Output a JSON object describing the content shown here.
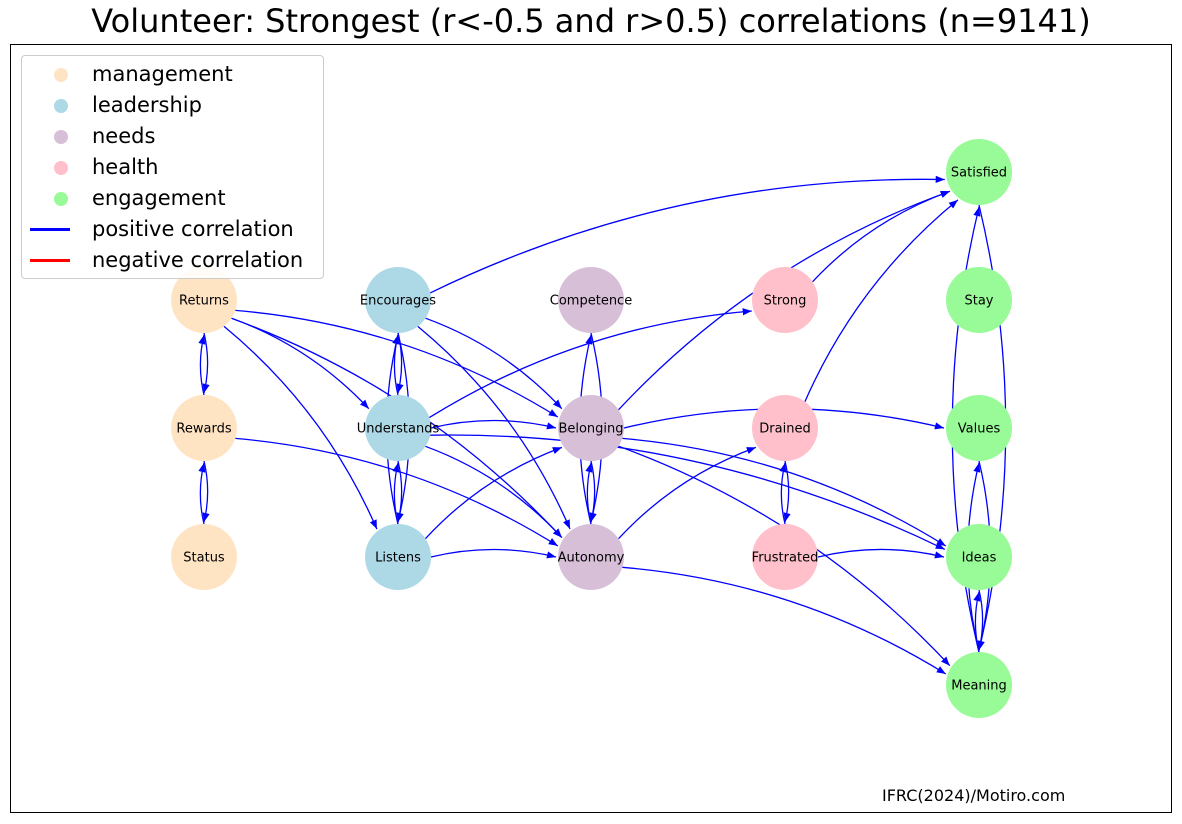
{
  "title": "Volunteer: Strongest (r<-0.5 and r>0.5) correlations (n=9141)",
  "credit": "IFRC(2024)/Motiro.com",
  "legend": {
    "items": [
      {
        "key": "management",
        "label": "management",
        "kind": "marker",
        "color": "#ffe4c4"
      },
      {
        "key": "leadership",
        "label": "leadership",
        "kind": "marker",
        "color": "#add8e6"
      },
      {
        "key": "needs",
        "label": "needs",
        "kind": "marker",
        "color": "#d8bfd8"
      },
      {
        "key": "health",
        "label": "health",
        "kind": "marker",
        "color": "#ffc0cb"
      },
      {
        "key": "engagement",
        "label": "engagement",
        "kind": "marker",
        "color": "#98fb98"
      },
      {
        "key": "positive",
        "label": "positive correlation",
        "kind": "line",
        "color": "#0000ff"
      },
      {
        "key": "negative",
        "label": "negative correlation",
        "kind": "line",
        "color": "#ff0000"
      }
    ]
  },
  "group_colors": {
    "management": "#ffe4c4",
    "leadership": "#add8e6",
    "needs": "#d8bfd8",
    "health": "#ffc0cb",
    "engagement": "#98fb98"
  },
  "edge_colors": {
    "positive": "#0000ff",
    "negative": "#ff0000"
  },
  "nodes": [
    {
      "id": "Returns",
      "label": "Returns",
      "group": "management"
    },
    {
      "id": "Rewards",
      "label": "Rewards",
      "group": "management"
    },
    {
      "id": "Status",
      "label": "Status",
      "group": "management"
    },
    {
      "id": "Encourages",
      "label": "Encourages",
      "group": "leadership"
    },
    {
      "id": "Understands",
      "label": "Understands",
      "group": "leadership"
    },
    {
      "id": "Listens",
      "label": "Listens",
      "group": "leadership"
    },
    {
      "id": "Competence",
      "label": "Competence",
      "group": "needs"
    },
    {
      "id": "Belonging",
      "label": "Belonging",
      "group": "needs"
    },
    {
      "id": "Autonomy",
      "label": "Autonomy",
      "group": "needs"
    },
    {
      "id": "Strong",
      "label": "Strong",
      "group": "health"
    },
    {
      "id": "Drained",
      "label": "Drained",
      "group": "health"
    },
    {
      "id": "Frustrated",
      "label": "Frustrated",
      "group": "health"
    },
    {
      "id": "Satisfied",
      "label": "Satisfied",
      "group": "engagement"
    },
    {
      "id": "Stay",
      "label": "Stay",
      "group": "engagement"
    },
    {
      "id": "Values",
      "label": "Values",
      "group": "engagement"
    },
    {
      "id": "Ideas",
      "label": "Ideas",
      "group": "engagement"
    },
    {
      "id": "Meaning",
      "label": "Meaning",
      "group": "engagement"
    }
  ],
  "edges": [
    {
      "from": "Returns",
      "to": "Rewards",
      "sign": "positive"
    },
    {
      "from": "Rewards",
      "to": "Returns",
      "sign": "positive"
    },
    {
      "from": "Rewards",
      "to": "Status",
      "sign": "positive"
    },
    {
      "from": "Status",
      "to": "Rewards",
      "sign": "positive"
    },
    {
      "from": "Returns",
      "to": "Understands",
      "sign": "positive"
    },
    {
      "from": "Returns",
      "to": "Belonging",
      "sign": "positive"
    },
    {
      "from": "Returns",
      "to": "Autonomy",
      "sign": "positive"
    },
    {
      "from": "Returns",
      "to": "Listens",
      "sign": "positive"
    },
    {
      "from": "Rewards",
      "to": "Autonomy",
      "sign": "positive"
    },
    {
      "from": "Encourages",
      "to": "Understands",
      "sign": "positive"
    },
    {
      "from": "Understands",
      "to": "Encourages",
      "sign": "positive"
    },
    {
      "from": "Encourages",
      "to": "Listens",
      "sign": "positive"
    },
    {
      "from": "Listens",
      "to": "Encourages",
      "sign": "positive"
    },
    {
      "from": "Understands",
      "to": "Listens",
      "sign": "positive"
    },
    {
      "from": "Listens",
      "to": "Understands",
      "sign": "positive"
    },
    {
      "from": "Encourages",
      "to": "Satisfied",
      "sign": "positive"
    },
    {
      "from": "Encourages",
      "to": "Belonging",
      "sign": "positive"
    },
    {
      "from": "Encourages",
      "to": "Autonomy",
      "sign": "positive"
    },
    {
      "from": "Understands",
      "to": "Belonging",
      "sign": "positive"
    },
    {
      "from": "Understands",
      "to": "Autonomy",
      "sign": "positive"
    },
    {
      "from": "Understands",
      "to": "Ideas",
      "sign": "positive"
    },
    {
      "from": "Understands",
      "to": "Strong",
      "sign": "positive"
    },
    {
      "from": "Listens",
      "to": "Belonging",
      "sign": "positive"
    },
    {
      "from": "Listens",
      "to": "Autonomy",
      "sign": "positive"
    },
    {
      "from": "Competence",
      "to": "Autonomy",
      "sign": "positive"
    },
    {
      "from": "Autonomy",
      "to": "Competence",
      "sign": "positive"
    },
    {
      "from": "Belonging",
      "to": "Autonomy",
      "sign": "positive"
    },
    {
      "from": "Autonomy",
      "to": "Belonging",
      "sign": "positive"
    },
    {
      "from": "Belonging",
      "to": "Satisfied",
      "sign": "positive"
    },
    {
      "from": "Belonging",
      "to": "Values",
      "sign": "positive"
    },
    {
      "from": "Belonging",
      "to": "Ideas",
      "sign": "positive"
    },
    {
      "from": "Belonging",
      "to": "Meaning",
      "sign": "positive"
    },
    {
      "from": "Autonomy",
      "to": "Drained",
      "sign": "positive"
    },
    {
      "from": "Autonomy",
      "to": "Meaning",
      "sign": "positive"
    },
    {
      "from": "Strong",
      "to": "Satisfied",
      "sign": "positive"
    },
    {
      "from": "Drained",
      "to": "Satisfied",
      "sign": "positive"
    },
    {
      "from": "Drained",
      "to": "Frustrated",
      "sign": "positive"
    },
    {
      "from": "Frustrated",
      "to": "Drained",
      "sign": "positive"
    },
    {
      "from": "Frustrated",
      "to": "Ideas",
      "sign": "positive"
    },
    {
      "from": "Satisfied",
      "to": "Meaning",
      "sign": "positive"
    },
    {
      "from": "Meaning",
      "to": "Satisfied",
      "sign": "positive"
    },
    {
      "from": "Values",
      "to": "Meaning",
      "sign": "positive"
    },
    {
      "from": "Meaning",
      "to": "Values",
      "sign": "positive"
    },
    {
      "from": "Ideas",
      "to": "Meaning",
      "sign": "positive"
    },
    {
      "from": "Meaning",
      "to": "Ideas",
      "sign": "positive"
    }
  ]
}
